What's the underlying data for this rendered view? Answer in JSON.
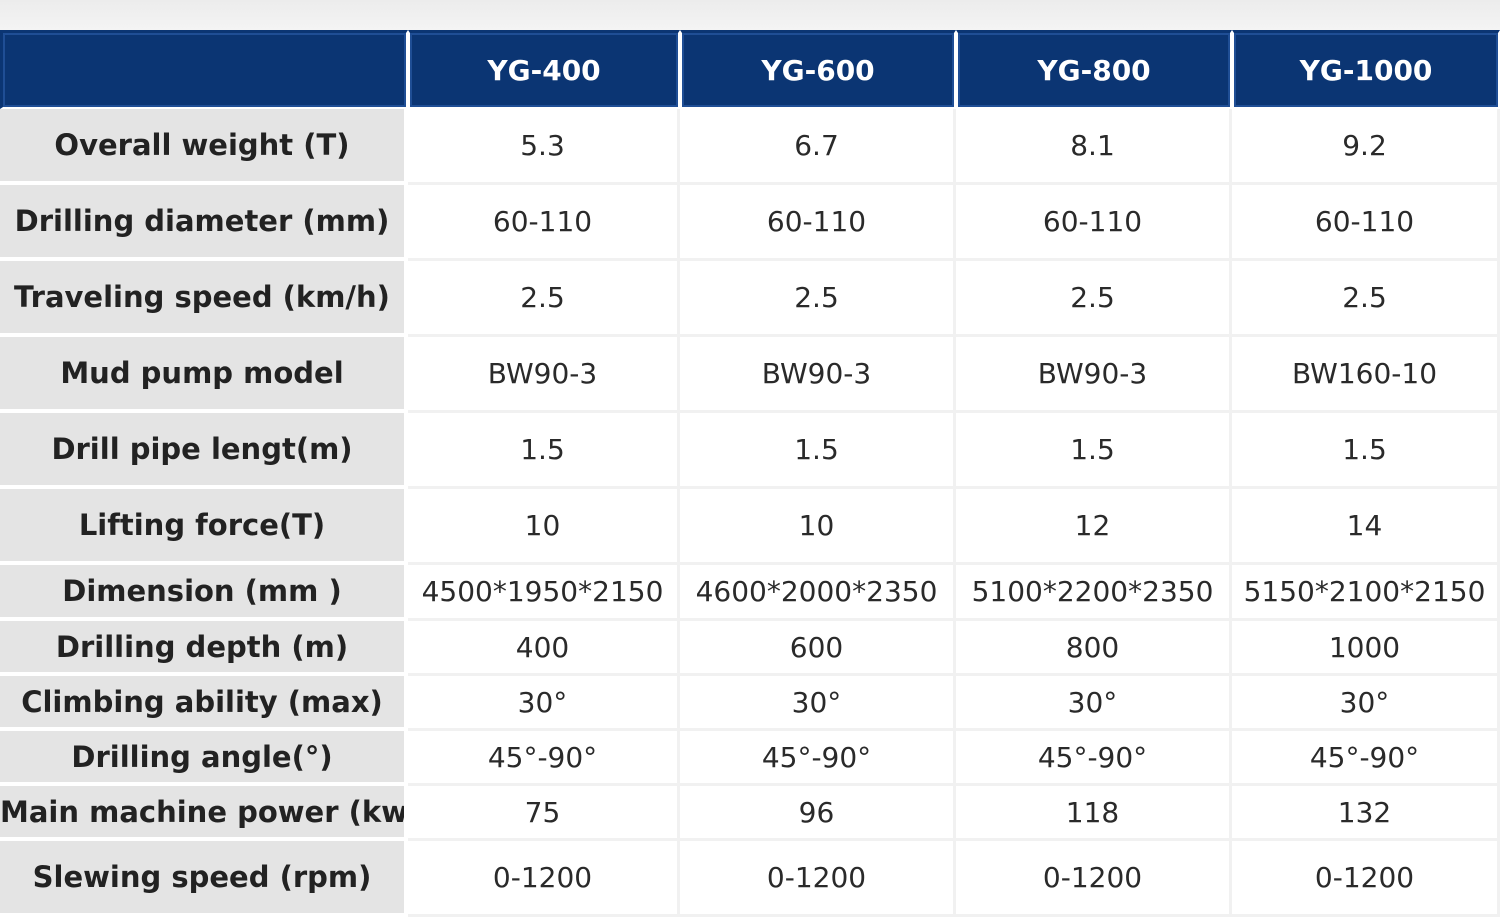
{
  "table": {
    "corner": "",
    "models": [
      "YG-400",
      "YG-600",
      "YG-800",
      "YG-1000"
    ],
    "rows": [
      {
        "label": "Overall weight (T)",
        "values": [
          "5.3",
          "6.7",
          "8.1",
          "9.2"
        ]
      },
      {
        "label": "Drilling diameter (mm)",
        "values": [
          "60-110",
          "60-110",
          "60-110",
          "60-110"
        ]
      },
      {
        "label": "Traveling speed (km/h)",
        "values": [
          "2.5",
          "2.5",
          "2.5",
          "2.5"
        ]
      },
      {
        "label": "Mud pump model",
        "values": [
          "BW90-3",
          "BW90-3",
          "BW90-3",
          "BW160-10"
        ]
      },
      {
        "label": "Drill pipe lengt(m)",
        "values": [
          "1.5",
          "1.5",
          "1.5",
          "1.5"
        ]
      },
      {
        "label": "Lifting force(T)",
        "values": [
          "10",
          "10",
          "12",
          "14"
        ]
      },
      {
        "label": "Dimension (mm )",
        "values": [
          "4500*1950*2150",
          "4600*2000*2350",
          "5100*2200*2350",
          "5150*2100*2150"
        ]
      },
      {
        "label": "Drilling depth (m)",
        "values": [
          "400",
          "600",
          "800",
          "1000"
        ]
      },
      {
        "label": "Climbing ability (max)",
        "values": [
          "30°",
          "30°",
          "30°",
          "30°"
        ]
      },
      {
        "label": "Drilling angle(°)",
        "values": [
          "45°-90°",
          "45°-90°",
          "45°-90°",
          "45°-90°"
        ]
      },
      {
        "label": "Main machine power (kw)",
        "values": [
          "75",
          "96",
          "118",
          "132"
        ]
      },
      {
        "label": "Slewing speed (rpm)",
        "values": [
          "0-1200",
          "0-1200",
          "0-1200",
          "0-1200"
        ]
      }
    ]
  },
  "colors": {
    "header_bg": "#0b3573",
    "header_text": "#ffffff",
    "label_bg": "#e4e4e4",
    "value_bg": "#ffffff"
  }
}
